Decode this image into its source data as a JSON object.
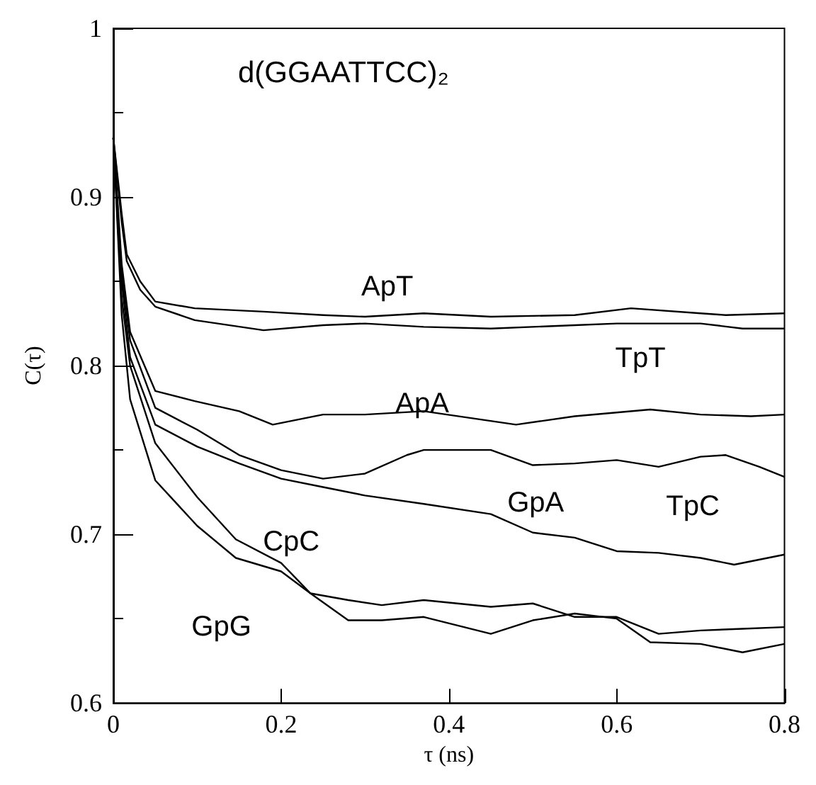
{
  "chart_data": {
    "type": "line",
    "title": "d(GGAATTCC)₂",
    "xlabel": "τ (ns)",
    "ylabel": "C(τ)",
    "xlim": [
      0,
      0.8
    ],
    "xticks": [
      0,
      0.2,
      0.4,
      0.6,
      0.8
    ],
    "ylim": [
      0.6,
      1
    ],
    "yticks": [
      0.6,
      0.7,
      0.8,
      0.9,
      1
    ],
    "grid": false,
    "marker": "none",
    "line_style": "solid",
    "series": [
      {
        "name": "ApT",
        "color": "#000000",
        "x": [
          0,
          0.01,
          0.016,
          0.032,
          0.05,
          0.097,
          0.179,
          0.25,
          0.3,
          0.37,
          0.45,
          0.55,
          0.617,
          0.7,
          0.73,
          0.8
        ],
        "values": [
          0.935,
          0.89,
          0.866,
          0.85,
          0.838,
          0.834,
          0.832,
          0.83,
          0.829,
          0.831,
          0.829,
          0.83,
          0.834,
          0.831,
          0.83,
          0.831
        ]
      },
      {
        "name": "TpT",
        "color": "#000000",
        "x": [
          0,
          0.01,
          0.016,
          0.032,
          0.05,
          0.097,
          0.179,
          0.25,
          0.3,
          0.37,
          0.45,
          0.55,
          0.6,
          0.7,
          0.75,
          0.8
        ],
        "values": [
          0.935,
          0.885,
          0.862,
          0.845,
          0.835,
          0.827,
          0.821,
          0.824,
          0.825,
          0.823,
          0.822,
          0.824,
          0.825,
          0.825,
          0.822,
          0.822
        ]
      },
      {
        "name": "ApA",
        "color": "#000000",
        "x": [
          0,
          0.01,
          0.02,
          0.05,
          0.097,
          0.15,
          0.19,
          0.25,
          0.3,
          0.37,
          0.48,
          0.55,
          0.64,
          0.7,
          0.76,
          0.8
        ],
        "values": [
          0.935,
          0.86,
          0.82,
          0.785,
          0.779,
          0.773,
          0.765,
          0.771,
          0.771,
          0.773,
          0.765,
          0.77,
          0.774,
          0.771,
          0.77,
          0.771
        ]
      },
      {
        "name": "TpC",
        "color": "#000000",
        "x": [
          0,
          0.01,
          0.02,
          0.05,
          0.1,
          0.15,
          0.2,
          0.25,
          0.3,
          0.35,
          0.37,
          0.45,
          0.5,
          0.55,
          0.6,
          0.65,
          0.7,
          0.73,
          0.77,
          0.8
        ],
        "values": [
          0.935,
          0.855,
          0.815,
          0.775,
          0.762,
          0.747,
          0.738,
          0.733,
          0.736,
          0.747,
          0.75,
          0.75,
          0.741,
          0.742,
          0.744,
          0.74,
          0.746,
          0.747,
          0.74,
          0.734
        ]
      },
      {
        "name": "GpA",
        "color": "#000000",
        "x": [
          0,
          0.01,
          0.02,
          0.05,
          0.1,
          0.15,
          0.2,
          0.25,
          0.3,
          0.37,
          0.45,
          0.5,
          0.55,
          0.6,
          0.65,
          0.7,
          0.74,
          0.8
        ],
        "values": [
          0.935,
          0.85,
          0.805,
          0.765,
          0.752,
          0.742,
          0.733,
          0.728,
          0.723,
          0.718,
          0.712,
          0.701,
          0.698,
          0.69,
          0.689,
          0.686,
          0.682,
          0.688
        ]
      },
      {
        "name": "CpC",
        "color": "#000000",
        "x": [
          0,
          0.01,
          0.02,
          0.05,
          0.1,
          0.146,
          0.2,
          0.235,
          0.28,
          0.32,
          0.37,
          0.45,
          0.5,
          0.55,
          0.6,
          0.64,
          0.7,
          0.75,
          0.8
        ],
        "values": [
          0.935,
          0.84,
          0.8,
          0.754,
          0.722,
          0.697,
          0.683,
          0.665,
          0.649,
          0.649,
          0.651,
          0.641,
          0.649,
          0.653,
          0.65,
          0.636,
          0.635,
          0.63,
          0.635
        ]
      },
      {
        "name": "GpG",
        "color": "#000000",
        "x": [
          0,
          0.01,
          0.02,
          0.05,
          0.1,
          0.146,
          0.2,
          0.235,
          0.28,
          0.32,
          0.37,
          0.45,
          0.5,
          0.55,
          0.6,
          0.65,
          0.7,
          0.75,
          0.8
        ],
        "values": [
          0.935,
          0.83,
          0.78,
          0.732,
          0.705,
          0.686,
          0.678,
          0.665,
          0.661,
          0.658,
          0.661,
          0.657,
          0.659,
          0.651,
          0.651,
          0.641,
          0.643,
          0.644,
          0.645
        ]
      }
    ]
  }
}
